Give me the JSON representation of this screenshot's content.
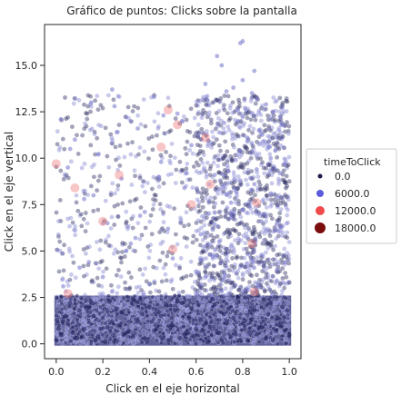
{
  "chart_data": {
    "type": "scatter",
    "title": "Gráfico de puntos: Clicks sobre la pantalla",
    "xlabel": "Click en el eje horizontal",
    "ylabel": "Click en el eje vertical",
    "xlim": [
      -0.05,
      1.05
    ],
    "ylim": [
      -0.8,
      17.2
    ],
    "x_ticks": [
      0.0,
      0.2,
      0.4,
      0.6,
      0.8,
      1.0
    ],
    "x_tick_labels": [
      "0.0",
      "0.2",
      "0.4",
      "0.6",
      "0.8",
      "1.0"
    ],
    "y_ticks": [
      0.0,
      2.5,
      5.0,
      7.5,
      10.0,
      12.5,
      15.0
    ],
    "y_tick_labels": [
      "0.0",
      "2.5",
      "5.0",
      "7.5",
      "10.0",
      "12.5",
      "15.0"
    ],
    "grid": false,
    "legend": {
      "placement": "right",
      "title": "timeToClick",
      "entries": [
        {
          "label": "0.0",
          "color": "#1c1c4a"
        },
        {
          "label": "6000.0",
          "color": "#5b5bdb"
        },
        {
          "label": "12000.0",
          "color": "#f04a4a"
        },
        {
          "label": "18000.0",
          "color": "#7a0c0c"
        }
      ]
    },
    "colors": {
      "low": "#23235e",
      "mid": "#7f7fd0",
      "high": "#f08080",
      "dense_band": "#2e2e7a"
    },
    "series": [
      {
        "x": [
          0.0,
          0.02,
          0.05,
          0.08,
          0.1,
          0.12,
          0.15,
          0.18,
          0.2,
          0.22,
          0.25,
          0.28,
          0.3,
          0.33,
          0.35,
          0.38,
          0.4,
          0.42,
          0.45,
          0.48,
          0.5,
          0.52,
          0.55,
          0.58,
          0.6,
          0.62,
          0.65,
          0.68,
          0.7,
          0.72,
          0.75,
          0.78,
          0.8,
          0.82,
          0.85,
          0.88,
          0.9,
          0.92,
          0.95,
          0.98,
          1.0,
          0.03,
          0.07,
          0.13,
          0.17,
          0.23,
          0.27,
          0.33,
          0.37,
          0.43,
          0.47,
          0.53,
          0.57,
          0.63,
          0.67,
          0.73,
          0.77,
          0.83,
          0.87,
          0.93,
          0.97,
          0.01,
          0.06,
          0.11,
          0.16,
          0.21,
          0.26,
          0.31,
          0.36,
          0.41,
          0.46,
          0.51,
          0.56,
          0.61,
          0.66,
          0.71,
          0.76,
          0.81,
          0.86,
          0.91,
          0.96,
          0.04,
          0.09,
          0.14,
          0.19,
          0.24,
          0.29,
          0.34,
          0.39,
          0.44,
          0.49,
          0.54,
          0.59,
          0.64,
          0.69,
          0.74,
          0.79,
          0.84,
          0.89,
          0.94,
          0.99
        ],
        "y": [
          0.2,
          0.5,
          1.1,
          0.3,
          1.8,
          0.8,
          2.2,
          0.4,
          1.4,
          0.9,
          0.1,
          1.7,
          0.6,
          2.4,
          1.2,
          0.3,
          2.0,
          0.7,
          1.5,
          0.2,
          1.0,
          2.3,
          0.5,
          1.9,
          0.8,
          1.3,
          0.1,
          2.1,
          0.6,
          1.6,
          0.4,
          2.5,
          1.1,
          0.2,
          1.8,
          0.9,
          0.3,
          2.2,
          1.4,
          0.7,
          0.5,
          1.2,
          0.6,
          1.9,
          0.2,
          2.3,
          1.0,
          0.4,
          1.6,
          0.8,
          2.1,
          0.3,
          1.4,
          0.7,
          2.4,
          1.1,
          0.5,
          1.7,
          0.9,
          0.2,
          2.0,
          0.8,
          2.2,
          0.4,
          1.5,
          0.1,
          1.9,
          0.7,
          2.4,
          1.2,
          0.3,
          1.8,
          0.6,
          2.1,
          0.9,
          0.2,
          1.4,
          2.5,
          0.5,
          1.6,
          1.0,
          1.5,
          0.3,
          2.0,
          0.8,
          1.2,
          0.5,
          2.3,
          0.1,
          1.7,
          0.9,
          2.2,
          0.4,
          1.1,
          0.6,
          1.9,
          0.2,
          1.3,
          2.4,
          0.7,
          1.8
        ],
        "scattered_x": [
          0.02,
          0.05,
          0.08,
          0.12,
          0.15,
          0.18,
          0.22,
          0.25,
          0.28,
          0.32,
          0.35,
          0.38,
          0.42,
          0.45,
          0.48,
          0.52,
          0.55,
          0.58,
          0.62,
          0.65,
          0.68,
          0.72,
          0.75,
          0.78,
          0.8,
          0.82,
          0.84,
          0.86,
          0.88,
          0.9,
          0.92,
          0.94,
          0.96,
          0.98,
          0.1,
          0.2,
          0.3,
          0.4,
          0.5,
          0.6,
          0.7,
          0.75,
          0.8,
          0.85,
          0.9,
          0.95,
          0.78,
          0.82,
          0.86,
          0.74,
          0.79,
          0.83,
          0.88,
          0.76,
          0.81,
          0.87,
          0.91,
          0.77,
          0.84,
          0.89,
          0.06,
          0.16,
          0.26,
          0.36,
          0.46,
          0.56,
          0.66,
          0.71,
          0.73,
          0.79,
          0.85,
          0.93,
          0.97,
          0.03,
          0.14,
          0.24,
          0.34,
          0.44,
          0.54,
          0.64,
          0.69,
          0.8,
          0.86,
          0.92
        ],
        "scattered_y": [
          12.1,
          9.5,
          11.0,
          7.8,
          13.0,
          10.2,
          6.5,
          12.8,
          8.9,
          5.4,
          11.6,
          7.1,
          13.3,
          9.8,
          6.2,
          12.4,
          8.4,
          10.7,
          5.9,
          13.1,
          9.1,
          11.9,
          7.6,
          12.6,
          14.2,
          10.9,
          13.5,
          9.4,
          11.3,
          12.9,
          8.1,
          10.4,
          12.2,
          9.7,
          4.1,
          3.6,
          5.0,
          3.2,
          4.6,
          3.9,
          5.5,
          6.8,
          7.2,
          8.6,
          6.1,
          7.9,
          12.0,
          11.1,
          10.1,
          9.3,
          8.8,
          7.4,
          6.6,
          13.8,
          12.7,
          11.5,
          10.6,
          9.9,
          8.3,
          7.0,
          10.5,
          8.0,
          11.4,
          6.9,
          12.3,
          9.2,
          4.8,
          15.0,
          13.6,
          16.2,
          14.7,
          12.5,
          11.8,
          3.1,
          4.4,
          13.7,
          5.7,
          9.0,
          12.0,
          14.0,
          15.5,
          16.3,
          13.2,
          10.0
        ]
      }
    ],
    "highlighted_points": [
      {
        "x": 0.0,
        "y": 9.7,
        "timeToClick": 12000.0
      },
      {
        "x": 0.08,
        "y": 8.4,
        "timeToClick": 12000.0
      },
      {
        "x": 0.2,
        "y": 6.6,
        "timeToClick": 12000.0
      },
      {
        "x": 0.27,
        "y": 9.1,
        "timeToClick": 12000.0
      },
      {
        "x": 0.45,
        "y": 10.6,
        "timeToClick": 12000.0
      },
      {
        "x": 0.48,
        "y": 12.6,
        "timeToClick": 12000.0
      },
      {
        "x": 0.52,
        "y": 11.8,
        "timeToClick": 12000.0
      },
      {
        "x": 0.58,
        "y": 7.5,
        "timeToClick": 12000.0
      },
      {
        "x": 0.64,
        "y": 11.1,
        "timeToClick": 12000.0
      },
      {
        "x": 0.66,
        "y": 8.6,
        "timeToClick": 12000.0
      },
      {
        "x": 0.84,
        "y": 5.4,
        "timeToClick": 12000.0
      },
      {
        "x": 0.86,
        "y": 7.6,
        "timeToClick": 12000.0
      },
      {
        "x": 0.85,
        "y": 2.8,
        "timeToClick": 12000.0
      },
      {
        "x": 0.05,
        "y": 2.7,
        "timeToClick": 12000.0
      },
      {
        "x": 0.5,
        "y": 5.1,
        "timeToClick": 12000.0
      }
    ]
  }
}
